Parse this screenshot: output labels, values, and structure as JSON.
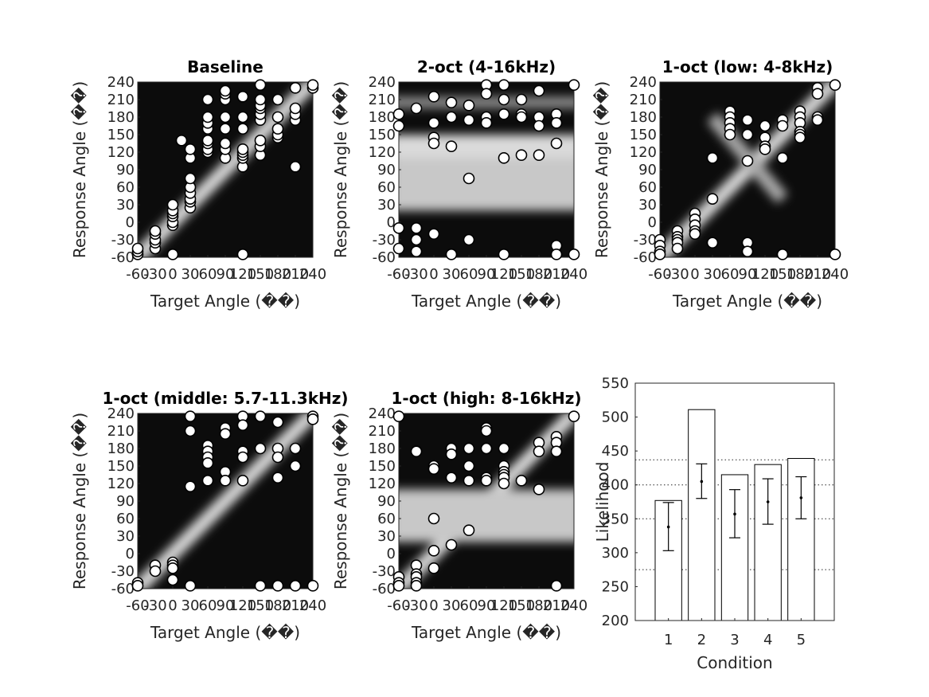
{
  "figure": {
    "background": "#ffffff",
    "marker_fill": "#ffffff",
    "marker_edge": "#000000"
  },
  "chart_data": [
    {
      "type": "heatmap",
      "title": "Baseline",
      "xlabel": "Target Angle (��)",
      "ylabel": "Response Angle (��)",
      "xlim": [
        -60,
        240
      ],
      "ylim": [
        -60,
        240
      ],
      "xticks": [
        "-60",
        "-30",
        "0",
        "30",
        "60",
        "90",
        "120",
        "150",
        "180",
        "210",
        "240"
      ],
      "yticks": [
        "-60",
        "-30",
        "0",
        "30",
        "60",
        "90",
        "120",
        "150",
        "180",
        "210",
        "240"
      ],
      "colormap": "grayscale (black = low, white = high)",
      "bright_features": [
        "diagonal"
      ],
      "responses": [
        [
          -60,
          -55
        ],
        [
          -60,
          -50
        ],
        [
          -60,
          -45
        ],
        [
          -30,
          -45
        ],
        [
          -30,
          -35
        ],
        [
          -30,
          -30
        ],
        [
          -30,
          -20
        ],
        [
          -30,
          -15
        ],
        [
          0,
          -5
        ],
        [
          0,
          0
        ],
        [
          0,
          10
        ],
        [
          0,
          15
        ],
        [
          0,
          20
        ],
        [
          0,
          30
        ],
        [
          30,
          25
        ],
        [
          30,
          35
        ],
        [
          30,
          40
        ],
        [
          30,
          50
        ],
        [
          30,
          60
        ],
        [
          30,
          75
        ],
        [
          30,
          110
        ],
        [
          30,
          125
        ],
        [
          15,
          140
        ],
        [
          0,
          -55
        ],
        [
          60,
          120
        ],
        [
          60,
          125
        ],
        [
          60,
          135
        ],
        [
          60,
          140
        ],
        [
          60,
          160
        ],
        [
          60,
          170
        ],
        [
          60,
          180
        ],
        [
          60,
          210
        ],
        [
          90,
          110
        ],
        [
          90,
          125
        ],
        [
          90,
          135
        ],
        [
          90,
          160
        ],
        [
          90,
          180
        ],
        [
          90,
          210
        ],
        [
          90,
          220
        ],
        [
          90,
          225
        ],
        [
          120,
          95
        ],
        [
          120,
          110
        ],
        [
          120,
          115
        ],
        [
          120,
          120
        ],
        [
          120,
          125
        ],
        [
          120,
          160
        ],
        [
          120,
          180
        ],
        [
          120,
          215
        ],
        [
          120,
          -55
        ],
        [
          150,
          115
        ],
        [
          150,
          130
        ],
        [
          150,
          140
        ],
        [
          150,
          175
        ],
        [
          150,
          185
        ],
        [
          150,
          195
        ],
        [
          150,
          200
        ],
        [
          150,
          210
        ],
        [
          150,
          235
        ],
        [
          180,
          145
        ],
        [
          180,
          150
        ],
        [
          180,
          160
        ],
        [
          180,
          180
        ],
        [
          180,
          210
        ],
        [
          210,
          95
        ],
        [
          210,
          175
        ],
        [
          210,
          185
        ],
        [
          210,
          195
        ],
        [
          210,
          230
        ],
        [
          240,
          230
        ],
        [
          240,
          235
        ]
      ]
    },
    {
      "type": "heatmap",
      "title": "2-oct (4-16kHz)",
      "xlabel": "Target Angle (��)",
      "ylabel": "Response Angle (��)",
      "xlim": [
        -60,
        240
      ],
      "ylim": [
        -60,
        240
      ],
      "xticks": [
        "-60",
        "-30",
        "0",
        "30",
        "60",
        "90",
        "120",
        "150",
        "180",
        "210",
        "240"
      ],
      "yticks": [
        "-60",
        "-30",
        "0",
        "30",
        "60",
        "90",
        "120",
        "150",
        "180",
        "210",
        "240"
      ],
      "colormap": "grayscale (black = low, white = high)",
      "bright_features": [
        "band-low",
        "band-mid"
      ],
      "responses": [
        [
          -60,
          185
        ],
        [
          -60,
          165
        ],
        [
          -60,
          -10
        ],
        [
          -60,
          -45
        ],
        [
          -30,
          -10
        ],
        [
          -30,
          -30
        ],
        [
          -30,
          -50
        ],
        [
          -30,
          195
        ],
        [
          0,
          215
        ],
        [
          0,
          170
        ],
        [
          0,
          145
        ],
        [
          0,
          135
        ],
        [
          0,
          -20
        ],
        [
          30,
          205
        ],
        [
          30,
          180
        ],
        [
          30,
          130
        ],
        [
          30,
          -55
        ],
        [
          60,
          200
        ],
        [
          60,
          175
        ],
        [
          60,
          75
        ],
        [
          60,
          -30
        ],
        [
          90,
          235
        ],
        [
          90,
          220
        ],
        [
          90,
          180
        ],
        [
          90,
          170
        ],
        [
          120,
          235
        ],
        [
          120,
          210
        ],
        [
          120,
          185
        ],
        [
          120,
          110
        ],
        [
          120,
          -55
        ],
        [
          150,
          210
        ],
        [
          150,
          185
        ],
        [
          150,
          180
        ],
        [
          150,
          115
        ],
        [
          180,
          225
        ],
        [
          180,
          180
        ],
        [
          180,
          165
        ],
        [
          180,
          115
        ],
        [
          210,
          185
        ],
        [
          210,
          170
        ],
        [
          210,
          135
        ],
        [
          210,
          -40
        ],
        [
          210,
          -55
        ],
        [
          240,
          235
        ],
        [
          240,
          -55
        ]
      ]
    },
    {
      "type": "heatmap",
      "title": "1-oct (low: 4-8kHz)",
      "xlabel": "Target Angle (��)",
      "ylabel": "Response Angle (��)",
      "xlim": [
        -60,
        240
      ],
      "ylim": [
        -60,
        240
      ],
      "xticks": [
        "-60",
        "-30",
        "0",
        "30",
        "60",
        "90",
        "120",
        "150",
        "180",
        "210",
        "240"
      ],
      "yticks": [
        "-60",
        "-30",
        "0",
        "30",
        "60",
        "90",
        "120",
        "150",
        "180",
        "210",
        "240"
      ],
      "colormap": "grayscale (black = low, white = high)",
      "bright_features": [
        "diagonal",
        "anti-diagonal"
      ],
      "responses": [
        [
          -60,
          -30
        ],
        [
          -60,
          -40
        ],
        [
          -60,
          -50
        ],
        [
          -60,
          -55
        ],
        [
          -30,
          -15
        ],
        [
          -30,
          -25
        ],
        [
          -30,
          -30
        ],
        [
          -30,
          -35
        ],
        [
          -30,
          -45
        ],
        [
          0,
          15
        ],
        [
          0,
          5
        ],
        [
          0,
          -5
        ],
        [
          0,
          -15
        ],
        [
          0,
          -20
        ],
        [
          30,
          110
        ],
        [
          30,
          40
        ],
        [
          30,
          -35
        ],
        [
          60,
          190
        ],
        [
          60,
          180
        ],
        [
          60,
          170
        ],
        [
          60,
          160
        ],
        [
          60,
          150
        ],
        [
          90,
          175
        ],
        [
          90,
          150
        ],
        [
          90,
          105
        ],
        [
          90,
          -35
        ],
        [
          90,
          -50
        ],
        [
          120,
          165
        ],
        [
          120,
          145
        ],
        [
          120,
          130
        ],
        [
          120,
          125
        ],
        [
          150,
          175
        ],
        [
          150,
          165
        ],
        [
          150,
          110
        ],
        [
          150,
          -55
        ],
        [
          180,
          190
        ],
        [
          180,
          180
        ],
        [
          180,
          170
        ],
        [
          180,
          155
        ],
        [
          180,
          150
        ],
        [
          180,
          145
        ],
        [
          210,
          230
        ],
        [
          210,
          220
        ],
        [
          210,
          180
        ],
        [
          210,
          175
        ],
        [
          240,
          235
        ],
        [
          240,
          -55
        ]
      ]
    },
    {
      "type": "heatmap",
      "title": "1-oct (middle: 5.7-11.3kHz)",
      "xlabel": "Target Angle (��)",
      "ylabel": "Response Angle (��)",
      "xlim": [
        -60,
        240
      ],
      "ylim": [
        -60,
        240
      ],
      "xticks": [
        "-60",
        "-30",
        "0",
        "30",
        "60",
        "90",
        "120",
        "150",
        "180",
        "210",
        "240"
      ],
      "yticks": [
        "-60",
        "-30",
        "0",
        "30",
        "60",
        "90",
        "120",
        "150",
        "180",
        "210",
        "240"
      ],
      "colormap": "grayscale (black = low, white = high)",
      "bright_features": [
        "diagonal"
      ],
      "responses": [
        [
          -60,
          -50
        ],
        [
          -60,
          -55
        ],
        [
          -30,
          -20
        ],
        [
          -30,
          -30
        ],
        [
          0,
          -15
        ],
        [
          0,
          -20
        ],
        [
          0,
          -25
        ],
        [
          0,
          -45
        ],
        [
          30,
          235
        ],
        [
          30,
          210
        ],
        [
          30,
          115
        ],
        [
          30,
          -55
        ],
        [
          60,
          185
        ],
        [
          60,
          175
        ],
        [
          60,
          165
        ],
        [
          60,
          155
        ],
        [
          60,
          125
        ],
        [
          90,
          215
        ],
        [
          90,
          205
        ],
        [
          90,
          140
        ],
        [
          90,
          125
        ],
        [
          120,
          235
        ],
        [
          120,
          220
        ],
        [
          120,
          175
        ],
        [
          120,
          165
        ],
        [
          120,
          125
        ],
        [
          150,
          235
        ],
        [
          150,
          180
        ],
        [
          150,
          -55
        ],
        [
          180,
          225
        ],
        [
          180,
          180
        ],
        [
          180,
          165
        ],
        [
          180,
          130
        ],
        [
          180,
          -55
        ],
        [
          210,
          180
        ],
        [
          210,
          150
        ],
        [
          210,
          -55
        ],
        [
          240,
          235
        ],
        [
          240,
          230
        ],
        [
          240,
          -55
        ]
      ]
    },
    {
      "type": "heatmap",
      "title": "1-oct (high: 8-16kHz)",
      "xlabel": "Target Angle (��)",
      "ylabel": "Response Angle (��)",
      "xlim": [
        -60,
        240
      ],
      "ylim": [
        -60,
        240
      ],
      "xticks": [
        "-60",
        "-30",
        "0",
        "30",
        "60",
        "90",
        "120",
        "150",
        "180",
        "210",
        "240"
      ],
      "yticks": [
        "-60",
        "-30",
        "0",
        "30",
        "60",
        "90",
        "120",
        "150",
        "180",
        "210",
        "240"
      ],
      "colormap": "grayscale (black = low, white = high)",
      "bright_features": [
        "diagonal",
        "band-mid"
      ],
      "responses": [
        [
          -60,
          235
        ],
        [
          -60,
          -40
        ],
        [
          -60,
          -50
        ],
        [
          -60,
          -55
        ],
        [
          -30,
          175
        ],
        [
          -30,
          -20
        ],
        [
          -30,
          -35
        ],
        [
          -30,
          -40
        ],
        [
          -30,
          -50
        ],
        [
          -30,
          -55
        ],
        [
          0,
          150
        ],
        [
          0,
          145
        ],
        [
          0,
          60
        ],
        [
          0,
          5
        ],
        [
          0,
          -25
        ],
        [
          30,
          180
        ],
        [
          30,
          170
        ],
        [
          30,
          130
        ],
        [
          30,
          15
        ],
        [
          60,
          180
        ],
        [
          60,
          150
        ],
        [
          60,
          125
        ],
        [
          60,
          40
        ],
        [
          90,
          215
        ],
        [
          90,
          210
        ],
        [
          90,
          180
        ],
        [
          90,
          130
        ],
        [
          90,
          125
        ],
        [
          120,
          180
        ],
        [
          120,
          150
        ],
        [
          120,
          140
        ],
        [
          120,
          135
        ],
        [
          120,
          130
        ],
        [
          120,
          120
        ],
        [
          150,
          125
        ],
        [
          180,
          190
        ],
        [
          180,
          175
        ],
        [
          180,
          110
        ],
        [
          210,
          200
        ],
        [
          210,
          190
        ],
        [
          210,
          175
        ],
        [
          210,
          -55
        ],
        [
          240,
          235
        ]
      ]
    },
    {
      "type": "bar",
      "categories": [
        "1",
        "2",
        "3",
        "4",
        "5"
      ],
      "values": [
        377,
        511,
        415,
        430,
        439
      ],
      "error_center": [
        338,
        405,
        357,
        375,
        381
      ],
      "error_low": [
        303,
        380,
        322,
        342,
        350
      ],
      "error_high": [
        374,
        431,
        393,
        409,
        412
      ],
      "reference_lines": [
        275,
        350,
        400,
        437
      ],
      "xlabel": "Condition",
      "ylabel": "Likelihood",
      "ylim": [
        200,
        550
      ],
      "yticks": [
        "200",
        "250",
        "300",
        "350",
        "400",
        "450",
        "500",
        "550"
      ],
      "bar_fill": "#ffffff"
    }
  ]
}
